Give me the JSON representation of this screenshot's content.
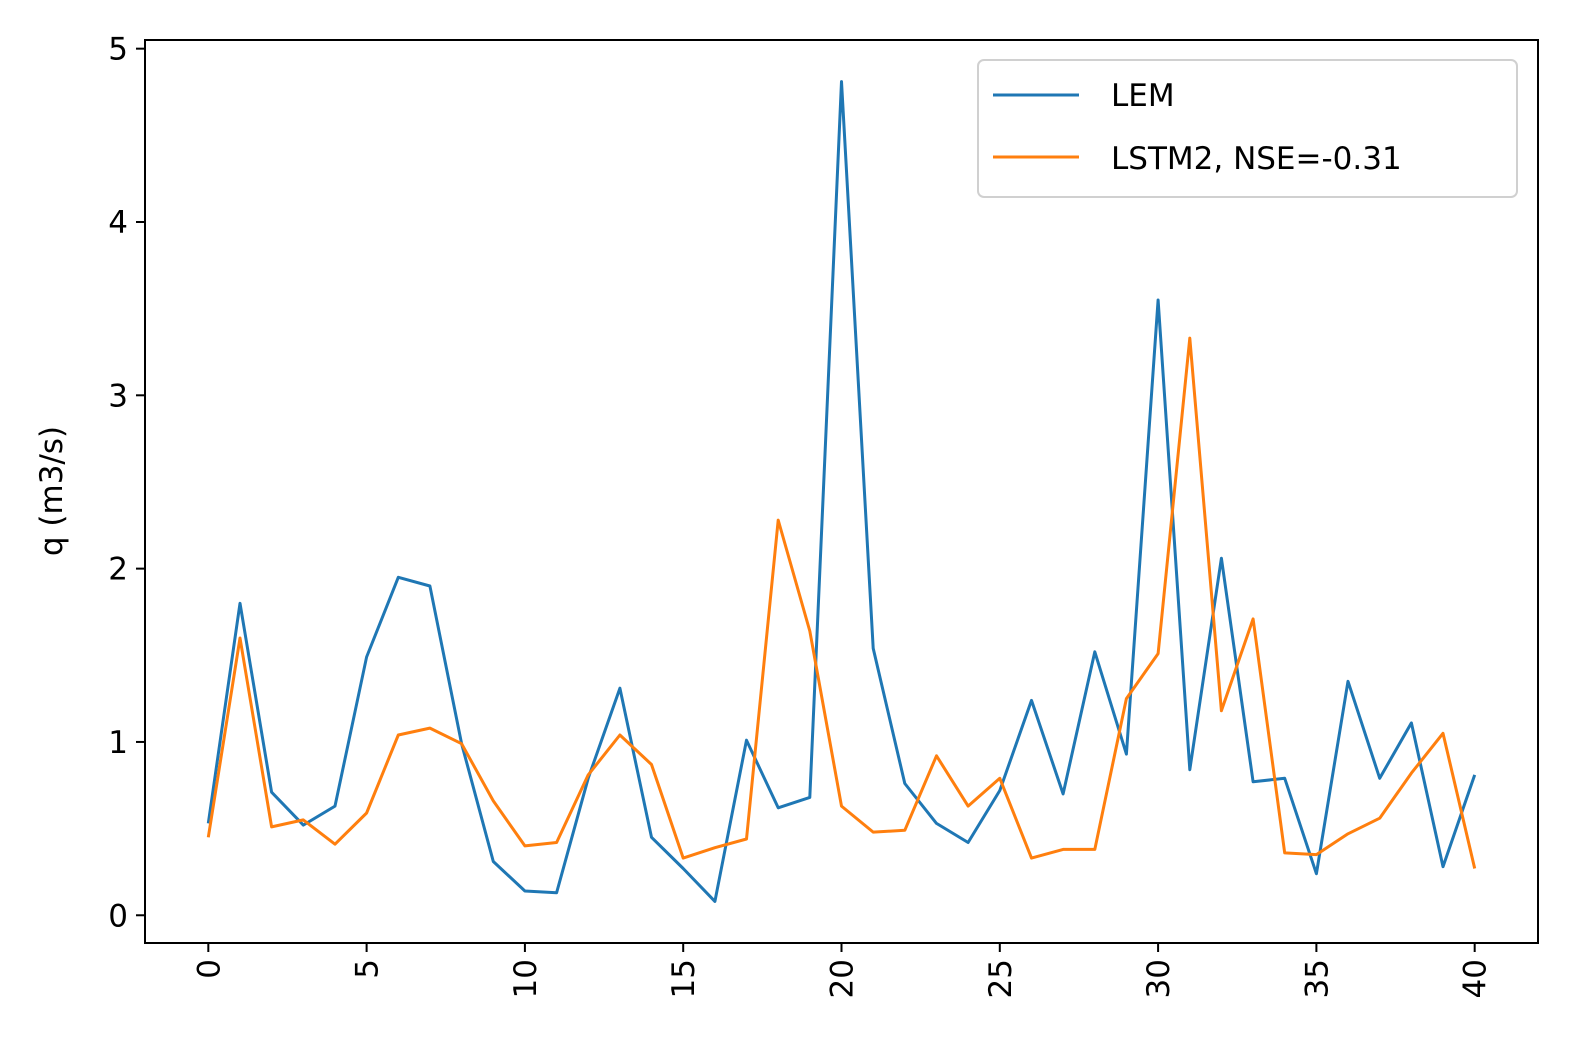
{
  "chart_data": {
    "type": "line",
    "title": "",
    "xlabel": "",
    "ylabel": "q (m3/s)",
    "x": [
      0,
      1,
      2,
      3,
      4,
      5,
      6,
      7,
      8,
      9,
      10,
      11,
      12,
      13,
      14,
      15,
      16,
      17,
      18,
      19,
      20,
      21,
      22,
      23,
      24,
      25,
      26,
      27,
      28,
      29,
      30,
      31,
      32,
      33,
      34,
      35,
      36,
      37,
      38,
      39,
      40
    ],
    "xlim": [
      -2,
      42
    ],
    "ylim": [
      -0.16,
      5.05
    ],
    "xticks": [
      0,
      5,
      10,
      15,
      20,
      25,
      30,
      35,
      40
    ],
    "xtick_labels": [
      "0",
      "5",
      "10",
      "15",
      "20",
      "25",
      "30",
      "35",
      "40"
    ],
    "xtick_rotation": 90,
    "yticks": [
      0,
      1,
      2,
      3,
      4,
      5
    ],
    "ytick_labels": [
      "0",
      "1",
      "2",
      "3",
      "4",
      "5"
    ],
    "grid": false,
    "legend_position": "top-right",
    "series": [
      {
        "name": "LEM",
        "color": "#1f77b4",
        "values": [
          0.53,
          1.8,
          0.71,
          0.52,
          0.63,
          1.49,
          1.95,
          1.9,
          0.99,
          0.31,
          0.14,
          0.13,
          0.79,
          1.31,
          0.45,
          0.27,
          0.08,
          1.01,
          0.62,
          0.68,
          4.81,
          1.54,
          0.76,
          0.53,
          0.42,
          0.72,
          1.24,
          0.7,
          1.52,
          0.93,
          3.55,
          0.84,
          2.06,
          0.77,
          0.79,
          0.24,
          1.35,
          0.79,
          1.11,
          0.28,
          0.81
        ]
      },
      {
        "name": "LSTM2, NSE=-0.31",
        "color": "#ff7f0e",
        "values": [
          0.45,
          1.6,
          0.51,
          0.55,
          0.41,
          0.59,
          1.04,
          1.08,
          0.99,
          0.66,
          0.4,
          0.42,
          0.81,
          1.04,
          0.87,
          0.33,
          0.39,
          0.44,
          2.28,
          1.64,
          0.63,
          0.48,
          0.49,
          0.92,
          0.63,
          0.79,
          0.33,
          0.38,
          0.38,
          1.25,
          1.51,
          3.33,
          1.18,
          1.71,
          0.36,
          0.35,
          0.47,
          0.56,
          0.82,
          1.05,
          0.27
        ]
      }
    ]
  }
}
